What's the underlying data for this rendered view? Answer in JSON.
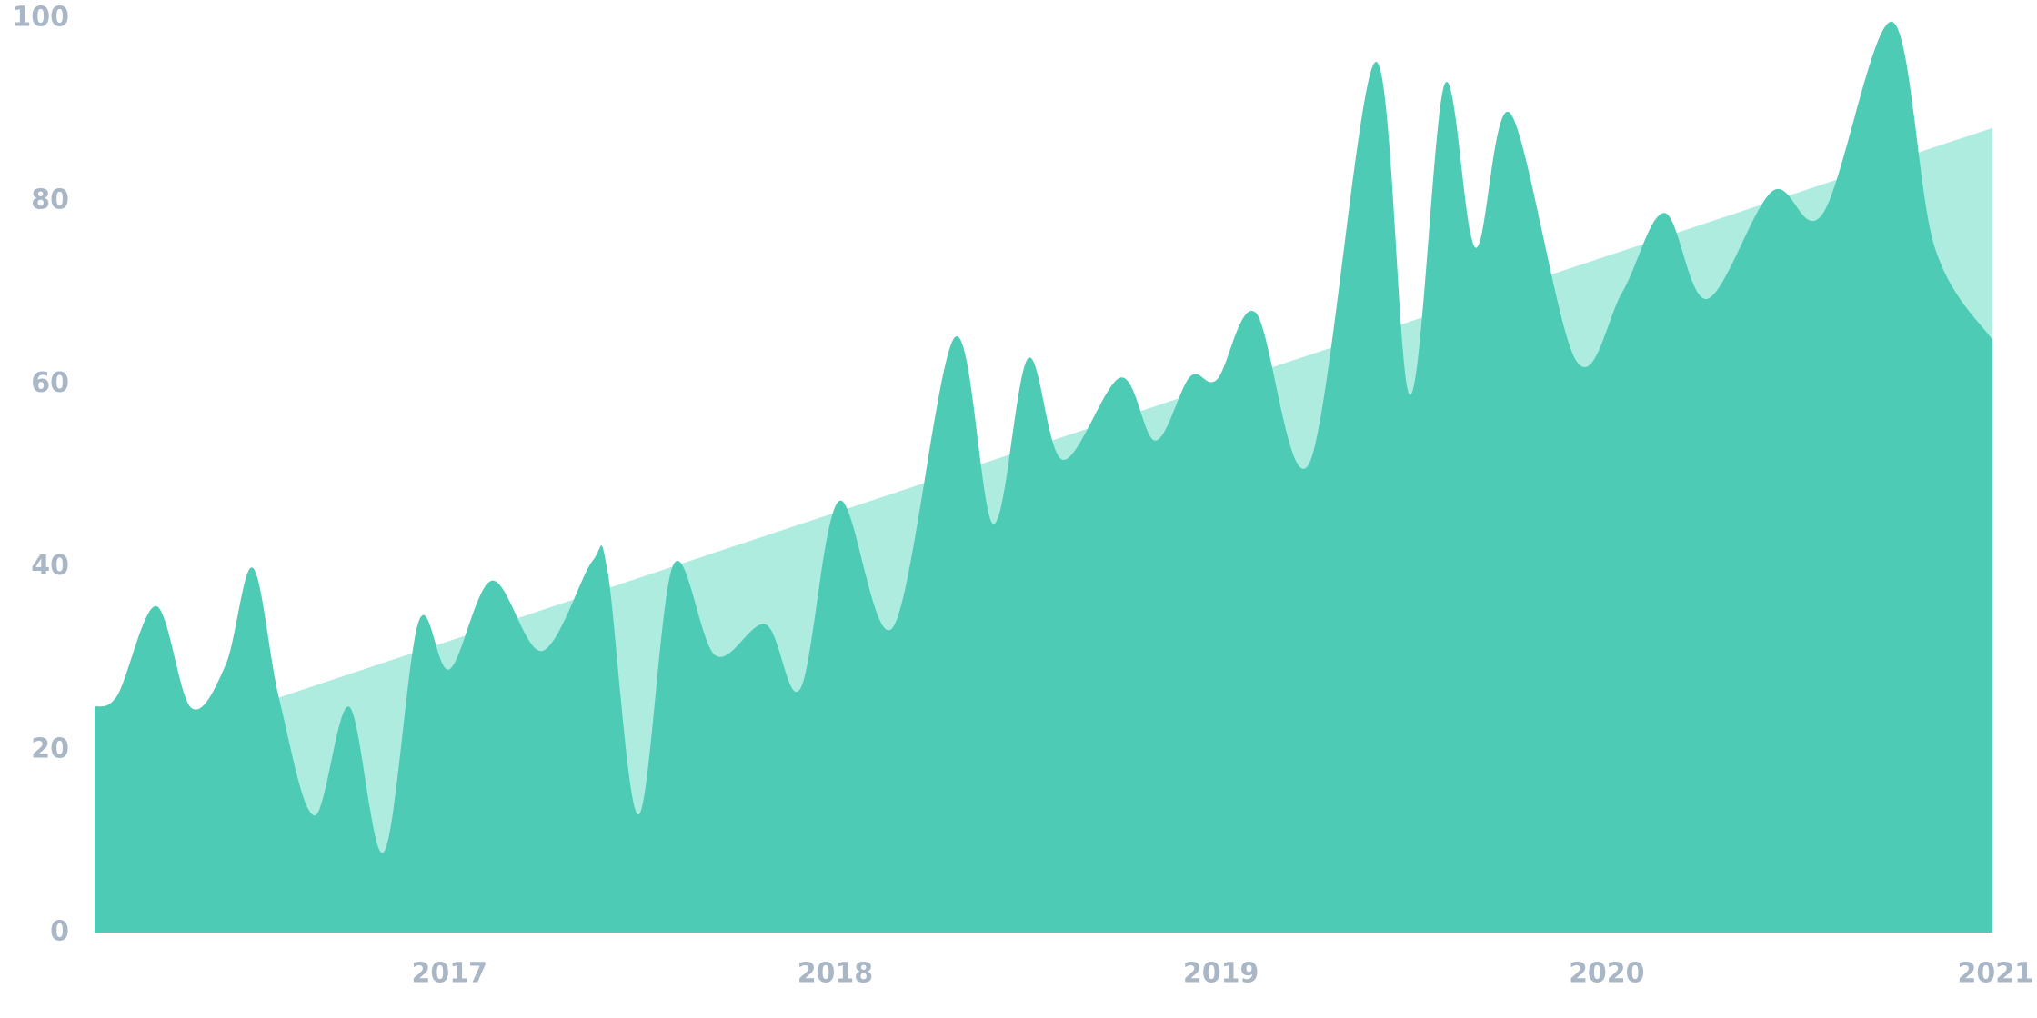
{
  "chart_data": {
    "type": "area",
    "series": [
      {
        "color": "#aeece0",
        "x": [
          2016.08,
          2021.0
        ],
        "values": [
          19,
          88
        ]
      },
      {
        "color": "#4ecbb4",
        "x": [
          2016.08,
          2016.14,
          2016.24,
          2016.33,
          2016.42,
          2016.49,
          2016.56,
          2016.65,
          2016.74,
          2016.83,
          2016.92,
          2017.0,
          2017.11,
          2017.24,
          2017.37,
          2017.41,
          2017.49,
          2017.58,
          2017.69,
          2017.82,
          2017.91,
          2018.01,
          2018.15,
          2018.31,
          2018.41,
          2018.5,
          2018.59,
          2018.74,
          2018.83,
          2018.92,
          2018.99,
          2019.09,
          2019.23,
          2019.4,
          2019.49,
          2019.58,
          2019.66,
          2019.75,
          2019.92,
          2020.04,
          2020.15,
          2020.26,
          2020.43,
          2020.56,
          2020.74,
          2020.85,
          2021.0
        ],
        "values": [
          24.7,
          26,
          35.7,
          24.6,
          29.3,
          39.9,
          25.3,
          12.8,
          24.7,
          8.8,
          34,
          28.8,
          38.5,
          30.8,
          40.6,
          39.5,
          12.9,
          40.2,
          30.3,
          33.7,
          26.7,
          47.2,
          33.4,
          65.1,
          44.7,
          62.8,
          51.7,
          60.7,
          53.8,
          60.8,
          60.5,
          67.8,
          51.4,
          95.2,
          58.8,
          92.8,
          74.9,
          89.6,
          62.6,
          70,
          78.7,
          69.3,
          81.1,
          78.6,
          99.6,
          75,
          64.8
        ]
      }
    ],
    "xlim": [
      2016.08,
      2021.0
    ],
    "xticks": [
      2017,
      2018,
      2019,
      2020,
      2021
    ],
    "ylim": [
      0,
      100
    ],
    "yticks": [
      0,
      20,
      40,
      60,
      80,
      100
    ],
    "grid": false
  }
}
